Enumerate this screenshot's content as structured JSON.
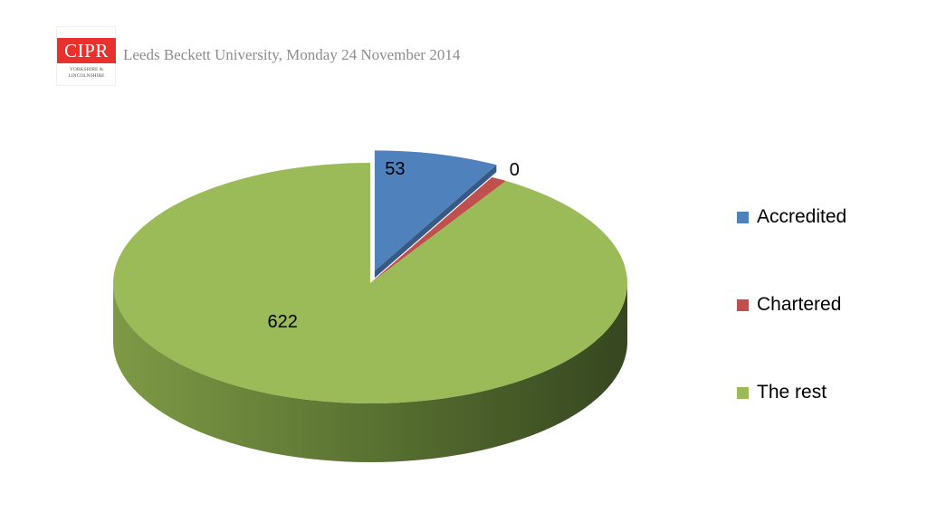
{
  "header": {
    "logo_text": "CIPR",
    "logo_sub_line1": "YORKSHIRE &",
    "logo_sub_line2": "LINCOLNSHIRE",
    "subtitle": "Leeds Beckett University, Monday 24 November 2014"
  },
  "chart_data": {
    "type": "pie",
    "style": "3d",
    "legend_position": "right",
    "series": [
      {
        "name": "Accredited",
        "value": 53,
        "label": "53",
        "color": "#4f81bd",
        "exploded": true
      },
      {
        "name": "Chartered",
        "value": 0,
        "label": "0",
        "color": "#c0504d",
        "exploded": false
      },
      {
        "name": "The rest",
        "value": 622,
        "label": "622",
        "color": "#9bbb59",
        "exploded": false
      }
    ]
  },
  "legend": [
    {
      "label": "Accredited",
      "color": "#4f81bd"
    },
    {
      "label": "Chartered",
      "color": "#c0504d"
    },
    {
      "label": "The rest",
      "color": "#9bbb59"
    }
  ]
}
